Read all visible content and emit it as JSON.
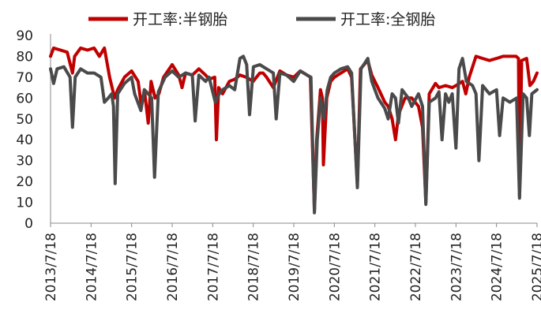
{
  "chart_data": {
    "type": "line",
    "title": "",
    "xlabel": "",
    "ylabel": "",
    "ylim": [
      0,
      90
    ],
    "yticks": [
      0,
      10,
      20,
      30,
      40,
      50,
      60,
      70,
      80,
      90
    ],
    "xlim": [
      "2013-07-18",
      "2025-07-18"
    ],
    "xtick_labels": [
      "2013/7/18",
      "2014/7/18",
      "2015/7/18",
      "2016/7/18",
      "2017/7/18",
      "2018/7/18",
      "2019/7/18",
      "2020/7/18",
      "2021/7/18",
      "2022/7/18",
      "2023/7/18",
      "2024/7/18",
      "2025/7/18"
    ],
    "grid": false,
    "legend_position": "top",
    "series": [
      {
        "name": "开工率:半钢胎",
        "color": "#C00000",
        "points": [
          [
            "2013-07-18",
            80
          ],
          [
            "2013-08-15",
            84
          ],
          [
            "2013-10-15",
            83
          ],
          [
            "2013-12-15",
            82
          ],
          [
            "2014-02-01",
            72
          ],
          [
            "2014-02-20",
            80
          ],
          [
            "2014-04-15",
            84
          ],
          [
            "2014-06-15",
            83
          ],
          [
            "2014-08-15",
            84
          ],
          [
            "2014-10-01",
            80
          ],
          [
            "2014-11-15",
            84
          ],
          [
            "2015-01-01",
            70
          ],
          [
            "2015-02-15",
            60
          ],
          [
            "2015-03-15",
            64
          ],
          [
            "2015-05-15",
            70
          ],
          [
            "2015-07-18",
            73
          ],
          [
            "2015-09-15",
            68
          ],
          [
            "2015-10-15",
            56
          ],
          [
            "2015-11-10",
            64
          ],
          [
            "2015-12-15",
            48
          ],
          [
            "2016-01-10",
            68
          ],
          [
            "2016-02-15",
            60
          ],
          [
            "2016-03-20",
            62
          ],
          [
            "2016-05-01",
            70
          ],
          [
            "2016-07-18",
            76
          ],
          [
            "2016-09-15",
            71
          ],
          [
            "2016-10-15",
            65
          ],
          [
            "2016-11-15",
            72
          ],
          [
            "2017-01-15",
            71
          ],
          [
            "2017-03-15",
            74
          ],
          [
            "2017-05-15",
            71
          ],
          [
            "2017-06-15",
            69
          ],
          [
            "2017-08-05",
            70
          ],
          [
            "2017-08-20",
            40
          ],
          [
            "2017-09-10",
            65
          ],
          [
            "2017-10-15",
            62
          ],
          [
            "2017-12-15",
            68
          ],
          [
            "2018-02-01",
            69
          ],
          [
            "2018-03-20",
            71
          ],
          [
            "2018-05-15",
            70
          ],
          [
            "2018-07-18",
            68
          ],
          [
            "2018-09-15",
            72
          ],
          [
            "2018-10-15",
            72
          ],
          [
            "2018-11-15",
            70
          ],
          [
            "2019-01-15",
            65
          ],
          [
            "2019-03-15",
            73
          ],
          [
            "2019-05-15",
            71
          ],
          [
            "2019-07-18",
            70
          ],
          [
            "2019-09-15",
            73
          ],
          [
            "2019-11-15",
            71
          ],
          [
            "2019-12-15",
            70
          ],
          [
            "2020-01-20",
            6
          ],
          [
            "2020-02-10",
            40
          ],
          [
            "2020-03-15",
            64
          ],
          [
            "2020-04-01",
            60
          ],
          [
            "2020-04-10",
            28
          ],
          [
            "2020-05-10",
            60
          ],
          [
            "2020-06-15",
            68
          ],
          [
            "2020-07-18",
            70
          ],
          [
            "2020-09-15",
            72
          ],
          [
            "2020-11-15",
            74
          ],
          [
            "2020-12-20",
            70
          ],
          [
            "2021-02-10",
            19
          ],
          [
            "2021-03-10",
            74
          ],
          [
            "2021-05-15",
            78
          ],
          [
            "2021-06-20",
            71
          ],
          [
            "2021-08-15",
            65
          ],
          [
            "2021-10-15",
            58
          ],
          [
            "2021-11-15",
            56
          ],
          [
            "2021-12-20",
            50
          ],
          [
            "2022-01-20",
            40
          ],
          [
            "2022-02-15",
            52
          ],
          [
            "2022-04-15",
            60
          ],
          [
            "2022-06-15",
            60
          ],
          [
            "2022-08-15",
            56
          ],
          [
            "2022-09-20",
            46
          ],
          [
            "2022-10-20",
            10
          ],
          [
            "2022-11-20",
            62
          ],
          [
            "2023-01-15",
            67
          ],
          [
            "2023-02-15",
            65
          ],
          [
            "2023-04-15",
            66
          ],
          [
            "2023-06-15",
            65
          ],
          [
            "2023-07-18",
            66
          ],
          [
            "2023-09-15",
            68
          ],
          [
            "2023-10-15",
            62
          ],
          [
            "2023-11-15",
            70
          ],
          [
            "2024-01-15",
            80
          ],
          [
            "2024-03-15",
            79
          ],
          [
            "2024-05-15",
            78
          ],
          [
            "2024-07-18",
            79
          ],
          [
            "2024-09-15",
            80
          ],
          [
            "2024-11-15",
            80
          ],
          [
            "2025-01-10",
            80
          ],
          [
            "2025-02-01",
            79
          ],
          [
            "2025-02-10",
            13
          ],
          [
            "2025-03-01",
            78
          ],
          [
            "2025-04-15",
            79
          ],
          [
            "2025-05-15",
            66
          ],
          [
            "2025-06-15",
            68
          ],
          [
            "2025-07-18",
            72
          ]
        ]
      },
      {
        "name": "开工率:全钢胎",
        "color": "#4A4A4A",
        "points": [
          [
            "2013-07-18",
            74
          ],
          [
            "2013-08-15",
            67
          ],
          [
            "2013-09-15",
            74
          ],
          [
            "2013-11-15",
            75
          ],
          [
            "2014-01-10",
            70
          ],
          [
            "2014-02-01",
            46
          ],
          [
            "2014-02-25",
            70
          ],
          [
            "2014-04-15",
            74
          ],
          [
            "2014-06-15",
            72
          ],
          [
            "2014-08-15",
            72
          ],
          [
            "2014-10-15",
            70
          ],
          [
            "2014-11-15",
            58
          ],
          [
            "2014-12-20",
            60
          ],
          [
            "2015-01-20",
            62
          ],
          [
            "2015-02-05",
            56
          ],
          [
            "2015-02-20",
            19
          ],
          [
            "2015-03-15",
            62
          ],
          [
            "2015-05-15",
            67
          ],
          [
            "2015-07-18",
            70
          ],
          [
            "2015-08-15",
            62
          ],
          [
            "2015-10-10",
            54
          ],
          [
            "2015-11-10",
            64
          ],
          [
            "2015-12-15",
            62
          ],
          [
            "2016-01-15",
            60
          ],
          [
            "2016-02-10",
            22
          ],
          [
            "2016-03-15",
            63
          ],
          [
            "2016-05-15",
            70
          ],
          [
            "2016-07-18",
            73
          ],
          [
            "2016-09-15",
            70
          ],
          [
            "2016-11-15",
            72
          ],
          [
            "2017-01-15",
            71
          ],
          [
            "2017-02-10",
            49
          ],
          [
            "2017-03-15",
            71
          ],
          [
            "2017-05-15",
            68
          ],
          [
            "2017-06-15",
            70
          ],
          [
            "2017-08-10",
            58
          ],
          [
            "2017-09-15",
            62
          ],
          [
            "2017-10-15",
            64
          ],
          [
            "2017-12-15",
            66
          ],
          [
            "2018-02-01",
            64
          ],
          [
            "2018-03-20",
            79
          ],
          [
            "2018-04-20",
            80
          ],
          [
            "2018-05-20",
            76
          ],
          [
            "2018-06-15",
            52
          ],
          [
            "2018-07-20",
            75
          ],
          [
            "2018-09-15",
            76
          ],
          [
            "2018-11-15",
            74
          ],
          [
            "2019-01-15",
            72
          ],
          [
            "2019-02-10",
            50
          ],
          [
            "2019-03-15",
            72
          ],
          [
            "2019-05-15",
            71
          ],
          [
            "2019-07-18",
            68
          ],
          [
            "2019-09-15",
            73
          ],
          [
            "2019-11-15",
            71
          ],
          [
            "2019-12-20",
            70
          ],
          [
            "2020-01-20",
            5
          ],
          [
            "2020-02-15",
            40
          ],
          [
            "2020-03-15",
            60
          ],
          [
            "2020-04-15",
            50
          ],
          [
            "2020-05-15",
            64
          ],
          [
            "2020-06-15",
            70
          ],
          [
            "2020-07-18",
            72
          ],
          [
            "2020-09-15",
            74
          ],
          [
            "2020-11-15",
            75
          ],
          [
            "2020-12-20",
            72
          ],
          [
            "2021-02-10",
            17
          ],
          [
            "2021-03-15",
            74
          ],
          [
            "2021-05-15",
            79
          ],
          [
            "2021-06-20",
            68
          ],
          [
            "2021-08-15",
            60
          ],
          [
            "2021-10-15",
            55
          ],
          [
            "2021-11-15",
            50
          ],
          [
            "2021-12-20",
            62
          ],
          [
            "2022-01-20",
            60
          ],
          [
            "2022-02-15",
            48
          ],
          [
            "2022-03-20",
            64
          ],
          [
            "2022-05-15",
            60
          ],
          [
            "2022-06-15",
            56
          ],
          [
            "2022-08-15",
            62
          ],
          [
            "2022-09-20",
            56
          ],
          [
            "2022-10-20",
            9
          ],
          [
            "2022-11-20",
            58
          ],
          [
            "2023-01-15",
            60
          ],
          [
            "2023-02-15",
            63
          ],
          [
            "2023-03-15",
            40
          ],
          [
            "2023-04-15",
            62
          ],
          [
            "2023-05-15",
            58
          ],
          [
            "2023-06-15",
            62
          ],
          [
            "2023-07-18",
            36
          ],
          [
            "2023-08-15",
            74
          ],
          [
            "2023-09-15",
            79
          ],
          [
            "2023-10-20",
            68
          ],
          [
            "2023-12-15",
            66
          ],
          [
            "2024-01-15",
            62
          ],
          [
            "2024-02-10",
            30
          ],
          [
            "2024-03-15",
            66
          ],
          [
            "2024-05-15",
            62
          ],
          [
            "2024-07-18",
            64
          ],
          [
            "2024-08-15",
            42
          ],
          [
            "2024-09-15",
            60
          ],
          [
            "2024-11-15",
            58
          ],
          [
            "2025-01-15",
            60
          ],
          [
            "2025-02-10",
            12
          ],
          [
            "2025-03-15",
            62
          ],
          [
            "2025-04-15",
            60
          ],
          [
            "2025-05-10",
            42
          ],
          [
            "2025-06-01",
            62
          ],
          [
            "2025-07-18",
            64
          ]
        ]
      }
    ]
  }
}
